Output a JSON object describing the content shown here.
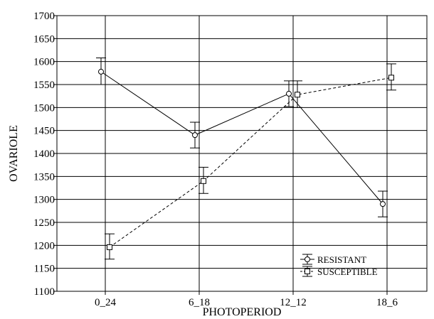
{
  "chart_data": {
    "type": "line",
    "xlabel": "PHOTOPERIOD",
    "ylabel": "OVARIOLE",
    "categories": [
      "0_24",
      "6_18",
      "12_12",
      "18_6"
    ],
    "ylim": [
      1100,
      1700
    ],
    "yticks": [
      1100,
      1150,
      1200,
      1250,
      1300,
      1350,
      1400,
      1450,
      1500,
      1550,
      1600,
      1650,
      1700
    ],
    "grid": true,
    "legend_position": "bottom-right",
    "series": [
      {
        "name": "RESISTANT",
        "marker": "circle",
        "line_style": "solid",
        "values": [
          1578,
          1440,
          1530,
          1290
        ],
        "error_low": [
          1550,
          1412,
          1502,
          1262
        ],
        "error_high": [
          1608,
          1468,
          1558,
          1318
        ]
      },
      {
        "name": "SUSCEPTIBLE",
        "marker": "square",
        "line_style": "dashed",
        "values": [
          1196,
          1340,
          1528,
          1565
        ],
        "error_low": [
          1170,
          1313,
          1500,
          1538
        ],
        "error_high": [
          1225,
          1370,
          1558,
          1595
        ]
      }
    ]
  }
}
